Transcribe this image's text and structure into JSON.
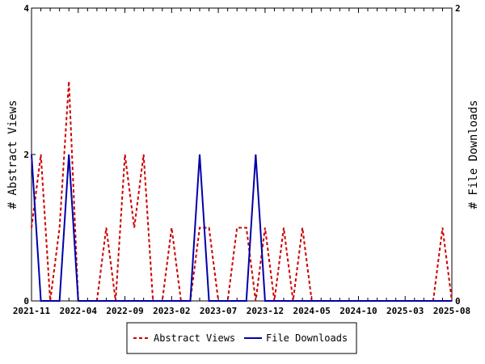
{
  "chart_data": {
    "type": "line",
    "title": "",
    "x_tick_labels": [
      "2021-11",
      "2022-04",
      "2022-09",
      "2023-02",
      "2023-07",
      "2023-12",
      "2024-05",
      "2024-10",
      "2025-03",
      "2025-08"
    ],
    "left_axis": {
      "label": "# Abstract Views",
      "ylim": [
        0,
        4
      ],
      "ticks": [
        "0",
        "2",
        "4"
      ]
    },
    "right_axis": {
      "label": "# File Downloads",
      "ylim": [
        0,
        2
      ],
      "ticks": [
        "0",
        "2"
      ]
    },
    "x_unit": "month index (0 = 2021-11)",
    "series": [
      {
        "name": "Abstract Views",
        "axis": "left",
        "color": "#cc0000",
        "style": "dashed",
        "points": [
          [
            0,
            1
          ],
          [
            1,
            2
          ],
          [
            2,
            0
          ],
          [
            3,
            1
          ],
          [
            4,
            3
          ],
          [
            5,
            0
          ],
          [
            6,
            0
          ],
          [
            7,
            0
          ],
          [
            8,
            1
          ],
          [
            9,
            0
          ],
          [
            10,
            2
          ],
          [
            11,
            1
          ],
          [
            12,
            2
          ],
          [
            13,
            0
          ],
          [
            14,
            0
          ],
          [
            15,
            1
          ],
          [
            16,
            0
          ],
          [
            17,
            0
          ],
          [
            18,
            1
          ],
          [
            19,
            1
          ],
          [
            20,
            0
          ],
          [
            21,
            0
          ],
          [
            22,
            1
          ],
          [
            23,
            1
          ],
          [
            24,
            0
          ],
          [
            25,
            1
          ],
          [
            26,
            0
          ],
          [
            27,
            1
          ],
          [
            28,
            0
          ],
          [
            29,
            1
          ],
          [
            30,
            0
          ],
          [
            31,
            0
          ],
          [
            32,
            0
          ],
          [
            33,
            0
          ],
          [
            34,
            0
          ],
          [
            35,
            0
          ],
          [
            36,
            0
          ],
          [
            37,
            0
          ],
          [
            38,
            0
          ],
          [
            39,
            0
          ],
          [
            40,
            0
          ],
          [
            41,
            0
          ],
          [
            42,
            0
          ],
          [
            43,
            0
          ],
          [
            44,
            1
          ],
          [
            45,
            0
          ]
        ]
      },
      {
        "name": "File Downloads",
        "axis": "right",
        "color": "#0000aa",
        "style": "solid",
        "points": [
          [
            0,
            1
          ],
          [
            1,
            0
          ],
          [
            2,
            0
          ],
          [
            3,
            0
          ],
          [
            4,
            1
          ],
          [
            5,
            0
          ],
          [
            6,
            0
          ],
          [
            7,
            0
          ],
          [
            8,
            0
          ],
          [
            9,
            0
          ],
          [
            10,
            0
          ],
          [
            11,
            0
          ],
          [
            12,
            0
          ],
          [
            13,
            0
          ],
          [
            14,
            0
          ],
          [
            15,
            0
          ],
          [
            16,
            0
          ],
          [
            17,
            0
          ],
          [
            18,
            1
          ],
          [
            19,
            0
          ],
          [
            20,
            0
          ],
          [
            21,
            0
          ],
          [
            22,
            0
          ],
          [
            23,
            0
          ],
          [
            24,
            1
          ],
          [
            25,
            0
          ],
          [
            26,
            0
          ],
          [
            27,
            0
          ],
          [
            28,
            0
          ],
          [
            29,
            0
          ],
          [
            30,
            0
          ],
          [
            31,
            0
          ],
          [
            32,
            0
          ],
          [
            33,
            0
          ],
          [
            34,
            0
          ],
          [
            35,
            0
          ],
          [
            36,
            0
          ],
          [
            37,
            0
          ],
          [
            38,
            0
          ],
          [
            39,
            0
          ],
          [
            40,
            0
          ],
          [
            41,
            0
          ],
          [
            42,
            0
          ],
          [
            43,
            0
          ],
          [
            44,
            0
          ],
          [
            45,
            0
          ]
        ]
      }
    ],
    "legend": {
      "position": "bottom-center",
      "entries": [
        "Abstract Views",
        "File Downloads"
      ]
    },
    "grid": false
  }
}
